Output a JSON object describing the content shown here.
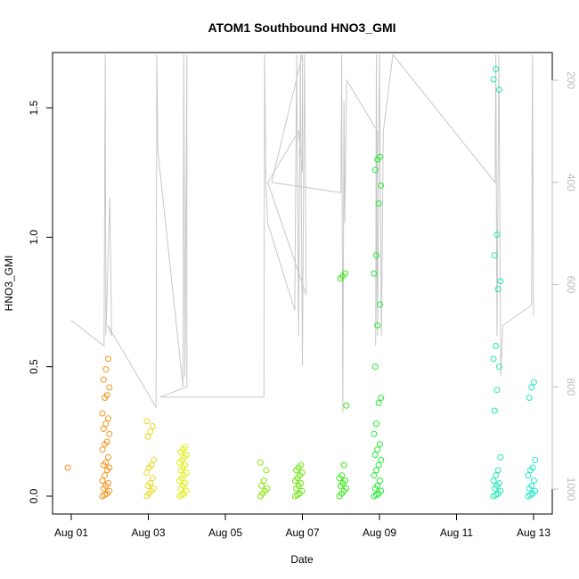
{
  "chart_data": {
    "type": "scatter",
    "title": "ATOM1 Southbound HNO3_GMI",
    "xlabel": "Date",
    "ylabel": "HNO3_GMI",
    "x_axis": {
      "type": "date",
      "range": [
        "2016-08-01",
        "2016-08-13"
      ],
      "ticks": [
        {
          "value": "2016-08-01",
          "label": "Aug 01"
        },
        {
          "value": "2016-08-03",
          "label": "Aug 03"
        },
        {
          "value": "2016-08-05",
          "label": "Aug 05"
        },
        {
          "value": "2016-08-07",
          "label": "Aug 07"
        },
        {
          "value": "2016-08-09",
          "label": "Aug 09"
        },
        {
          "value": "2016-08-11",
          "label": "Aug 11"
        },
        {
          "value": "2016-08-13",
          "label": "Aug 13"
        }
      ]
    },
    "y_axis": {
      "range": [
        0,
        1.7
      ],
      "ticks": [
        0.0,
        0.5,
        1.0,
        1.5
      ],
      "tick_labels": [
        "0.0",
        "0.5",
        "1.0",
        "1.5"
      ]
    },
    "y2_axis": {
      "reversed": true,
      "range": [
        150,
        1030
      ],
      "ticks": [
        200,
        400,
        600,
        800,
        1000
      ],
      "tick_labels": [
        "200",
        "400",
        "600",
        "800",
        "1000"
      ],
      "color": "#bdbdbd"
    },
    "grid": false,
    "point_clusters": [
      {
        "day": "2016-08-01",
        "color": "#f7901e",
        "values": [
          0.11
        ]
      },
      {
        "day": "2016-08-01.9",
        "color": "#f4941c",
        "values": [
          0.0,
          0.005,
          0.01,
          0.02,
          0.03,
          0.04,
          0.05,
          0.06,
          0.08,
          0.1,
          0.11,
          0.12,
          0.13,
          0.15,
          0.18,
          0.2,
          0.21,
          0.24,
          0.26,
          0.28,
          0.3,
          0.32,
          0.38,
          0.39,
          0.42,
          0.45,
          0.49,
          0.53
        ]
      },
      {
        "day": "2016-08-03.05",
        "color": "#e8d820",
        "values": [
          0.0,
          0.01,
          0.02,
          0.03,
          0.04,
          0.05,
          0.07,
          0.09,
          0.11,
          0.12,
          0.14,
          0.23,
          0.25,
          0.27,
          0.29
        ]
      },
      {
        "day": "2016-08-03.9",
        "color": "#e0ee16",
        "values": [
          0.0,
          0.005,
          0.01,
          0.02,
          0.03,
          0.04,
          0.05,
          0.06,
          0.07,
          0.08,
          0.09,
          0.1,
          0.11,
          0.12,
          0.13,
          0.14,
          0.15,
          0.16,
          0.17,
          0.18,
          0.19
        ]
      },
      {
        "day": "2016-08-06.0",
        "color": "#8be40e",
        "values": [
          0.0,
          0.01,
          0.02,
          0.03,
          0.04,
          0.06,
          0.1,
          0.13
        ]
      },
      {
        "day": "2016-08-06.9",
        "color": "#6ee614",
        "values": [
          0.0,
          0.005,
          0.01,
          0.02,
          0.03,
          0.04,
          0.05,
          0.06,
          0.07,
          0.08,
          0.09,
          0.1,
          0.11,
          0.12
        ]
      },
      {
        "day": "2016-08-08.05",
        "color": "#3de51a",
        "values": [
          0.0,
          0.01,
          0.02,
          0.03,
          0.04,
          0.05,
          0.06,
          0.07,
          0.08,
          0.12,
          0.35,
          0.84,
          0.85,
          0.86
        ]
      },
      {
        "day": "2016-08-08.95",
        "color": "#22ea33",
        "values": [
          0.0,
          0.005,
          0.01,
          0.02,
          0.03,
          0.04,
          0.06,
          0.08,
          0.1,
          0.12,
          0.14,
          0.16,
          0.18,
          0.2,
          0.24,
          0.28,
          0.36,
          0.38,
          0.5,
          0.66,
          0.74,
          0.86,
          0.93,
          1.13,
          1.2,
          1.26,
          1.3,
          1.31
        ]
      },
      {
        "day": "2016-08-12.05",
        "color": "#22e8b3",
        "values": [
          0.0,
          0.005,
          0.01,
          0.02,
          0.03,
          0.04,
          0.05,
          0.06,
          0.08,
          0.1,
          0.15,
          0.33,
          0.41,
          0.5,
          0.53,
          0.58,
          0.8,
          0.83,
          0.93,
          1.01,
          1.57,
          1.61,
          1.65
        ]
      },
      {
        "day": "2016-08-12.95",
        "color": "#22e8c8",
        "values": [
          0.0,
          0.005,
          0.01,
          0.02,
          0.03,
          0.04,
          0.06,
          0.08,
          0.1,
          0.11,
          0.14,
          0.38,
          0.42,
          0.44
        ]
      }
    ],
    "pressure_line": {
      "color": "#c8c8c8",
      "axis": "y2",
      "points": [
        [
          "2016-08-01.0",
          670
        ],
        [
          "2016-08-01.85",
          720
        ],
        [
          "2016-08-01.88",
          150
        ],
        [
          "2016-08-01.9",
          700
        ],
        [
          "2016-08-01.95",
          560
        ],
        [
          "2016-08-02.0",
          430
        ],
        [
          "2016-08-02.05",
          700
        ],
        [
          "2016-08-01.95",
          680
        ],
        [
          "2016-08-03.2",
          840
        ],
        [
          "2016-08-03.22",
          150
        ],
        [
          "2016-08-03.25",
          340
        ],
        [
          "2016-08-03.9",
          800
        ],
        [
          "2016-08-03.92",
          150
        ],
        [
          "2016-08-03.95",
          780
        ],
        [
          "2016-08-04.0",
          150
        ],
        [
          "2016-08-04.0",
          800
        ],
        [
          "2016-08-03.3",
          820
        ],
        [
          "2016-08-06.0",
          820
        ],
        [
          "2016-08-06.02",
          150
        ],
        [
          "2016-08-06.05",
          400
        ],
        [
          "2016-08-06.1",
          480
        ],
        [
          "2016-08-06.8",
          650
        ],
        [
          "2016-08-06.85",
          150
        ],
        [
          "2016-08-06.9",
          700
        ],
        [
          "2016-08-06.95",
          150
        ],
        [
          "2016-08-07.0",
          760
        ],
        [
          "2016-08-07.05",
          150
        ],
        [
          "2016-08-07.1",
          620
        ],
        [
          "2016-08-06.1",
          400
        ],
        [
          "2016-08-06.9",
          300
        ],
        [
          "2016-08-07.0",
          380
        ],
        [
          "2016-08-07.0",
          150
        ],
        [
          "2016-08-06.2",
          400
        ],
        [
          "2016-08-08.0",
          420
        ],
        [
          "2016-08-08.02",
          150
        ],
        [
          "2016-08-08.05",
          850
        ],
        [
          "2016-08-08.08",
          240
        ],
        [
          "2016-08-08.1",
          480
        ],
        [
          "2016-08-08.15",
          200
        ],
        [
          "2016-08-08.95",
          300
        ],
        [
          "2016-08-08.9",
          720
        ],
        [
          "2016-08-08.92",
          150
        ],
        [
          "2016-08-08.95",
          700
        ],
        [
          "2016-08-09.0",
          150
        ],
        [
          "2016-08-09.05",
          700
        ],
        [
          "2016-08-09.1",
          300
        ],
        [
          "2016-08-09.35",
          150
        ],
        [
          "2016-08-12.0",
          400
        ],
        [
          "2016-08-12.02",
          150
        ],
        [
          "2016-08-12.05",
          700
        ],
        [
          "2016-08-12.1",
          150
        ],
        [
          "2016-08-12.15",
          780
        ],
        [
          "2016-08-12.2",
          680
        ],
        [
          "2016-08-12.95",
          640
        ],
        [
          "2016-08-12.97",
          150
        ],
        [
          "2016-08-13.0",
          660
        ]
      ]
    }
  }
}
